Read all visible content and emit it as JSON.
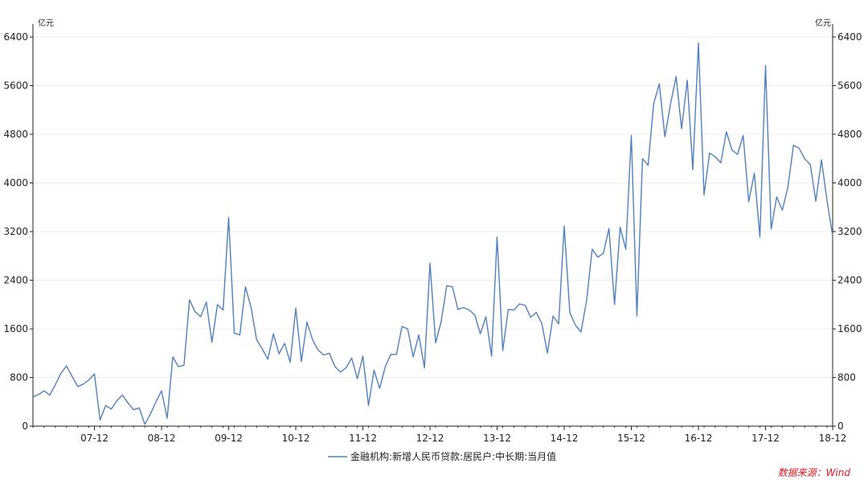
{
  "chart_data": {
    "type": "line",
    "y_unit_left": "亿元",
    "y_unit_right": "亿元",
    "ylim": [
      0,
      6400
    ],
    "y_ticks": [
      0,
      800,
      1600,
      2400,
      3200,
      4000,
      4800,
      5600,
      6400
    ],
    "x_tick_labels": [
      "07-12",
      "08-12",
      "09-12",
      "10-12",
      "11-12",
      "12-12",
      "13-12",
      "14-12",
      "15-12",
      "16-12",
      "17-12",
      "18-12"
    ],
    "x_range_months": [
      "2007-01",
      "2018-12"
    ],
    "grid": true,
    "legend_position": "bottom-center",
    "line_color": "#4f81bd",
    "series": [
      {
        "name": "金融机构:新增人民币贷款:居民户:中长期:当月值",
        "x": [
          "2007-01",
          "2007-02",
          "2007-03",
          "2007-04",
          "2007-05",
          "2007-06",
          "2007-07",
          "2007-08",
          "2007-09",
          "2007-10",
          "2007-11",
          "2007-12",
          "2008-01",
          "2008-02",
          "2008-03",
          "2008-04",
          "2008-05",
          "2008-06",
          "2008-07",
          "2008-08",
          "2008-09",
          "2008-10",
          "2008-11",
          "2008-12",
          "2009-01",
          "2009-02",
          "2009-03",
          "2009-04",
          "2009-05",
          "2009-06",
          "2009-07",
          "2009-08",
          "2009-09",
          "2009-10",
          "2009-11",
          "2009-12",
          "2010-01",
          "2010-02",
          "2010-03",
          "2010-04",
          "2010-05",
          "2010-06",
          "2010-07",
          "2010-08",
          "2010-09",
          "2010-10",
          "2010-11",
          "2010-12",
          "2011-01",
          "2011-02",
          "2011-03",
          "2011-04",
          "2011-05",
          "2011-06",
          "2011-07",
          "2011-08",
          "2011-09",
          "2011-10",
          "2011-11",
          "2011-12",
          "2012-01",
          "2012-02",
          "2012-03",
          "2012-04",
          "2012-05",
          "2012-06",
          "2012-07",
          "2012-08",
          "2012-09",
          "2012-10",
          "2012-11",
          "2012-12",
          "2013-01",
          "2013-02",
          "2013-03",
          "2013-04",
          "2013-05",
          "2013-06",
          "2013-07",
          "2013-08",
          "2013-09",
          "2013-10",
          "2013-11",
          "2013-12",
          "2014-01",
          "2014-02",
          "2014-03",
          "2014-04",
          "2014-05",
          "2014-06",
          "2014-07",
          "2014-08",
          "2014-09",
          "2014-10",
          "2014-11",
          "2014-12",
          "2015-01",
          "2015-02",
          "2015-03",
          "2015-04",
          "2015-05",
          "2015-06",
          "2015-07",
          "2015-08",
          "2015-09",
          "2015-10",
          "2015-11",
          "2015-12",
          "2016-01",
          "2016-02",
          "2016-03",
          "2016-04",
          "2016-05",
          "2016-06",
          "2016-07",
          "2016-08",
          "2016-09",
          "2016-10",
          "2016-11",
          "2016-12",
          "2017-01",
          "2017-02",
          "2017-03",
          "2017-04",
          "2017-05",
          "2017-06",
          "2017-07",
          "2017-08",
          "2017-09",
          "2017-10",
          "2017-11",
          "2017-12",
          "2018-01",
          "2018-02",
          "2018-03",
          "2018-04",
          "2018-05",
          "2018-06",
          "2018-07",
          "2018-08",
          "2018-09",
          "2018-10",
          "2018-11",
          "2018-12"
        ],
        "values": [
          480,
          520,
          580,
          510,
          680,
          870,
          990,
          820,
          650,
          690,
          760,
          860,
          100,
          340,
          280,
          420,
          510,
          380,
          270,
          300,
          30,
          200,
          400,
          580,
          130,
          1140,
          980,
          1000,
          2080,
          1880,
          1800,
          2040,
          1380,
          2000,
          1910,
          3430,
          1530,
          1500,
          2290,
          1950,
          1420,
          1270,
          1100,
          1520,
          1190,
          1360,
          1050,
          1940,
          1060,
          1710,
          1420,
          1250,
          1170,
          1200,
          980,
          890,
          960,
          1120,
          780,
          1150,
          340,
          920,
          620,
          980,
          1180,
          1180,
          1640,
          1600,
          1140,
          1500,
          960,
          2680,
          1370,
          1720,
          2310,
          2290,
          1920,
          1950,
          1910,
          1830,
          1520,
          1800,
          1150,
          3110,
          1240,
          1920,
          1910,
          2010,
          1990,
          1790,
          1870,
          1690,
          1200,
          1810,
          1680,
          3290,
          1870,
          1660,
          1550,
          2060,
          2910,
          2780,
          2840,
          3250,
          2000,
          3270,
          2910,
          4780,
          1810,
          4400,
          4290,
          5300,
          5630,
          4760,
          5290,
          5750,
          4890,
          5690,
          4220,
          6300,
          3800,
          4490,
          4430,
          4330,
          4840,
          4540,
          4470,
          4780,
          3690,
          4160,
          3110,
          5930,
          3240,
          3770,
          3550,
          3930,
          4620,
          4570,
          4400,
          4300,
          3700,
          4380,
          3710,
          3130
        ]
      }
    ]
  },
  "source_label": "数据来源：Wind"
}
